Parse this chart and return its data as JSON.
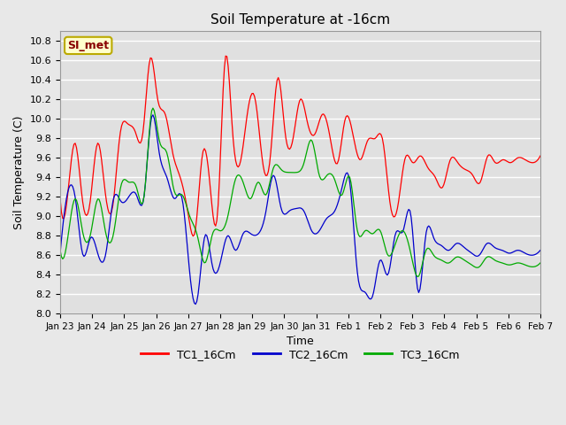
{
  "title": "Soil Temperature at -16cm",
  "xlabel": "Time",
  "ylabel": "Soil Temperature (C)",
  "ylim": [
    8.0,
    10.9
  ],
  "yticks": [
    8.0,
    8.2,
    8.4,
    8.6,
    8.8,
    9.0,
    9.2,
    9.4,
    9.6,
    9.8,
    10.0,
    10.2,
    10.4,
    10.6,
    10.8
  ],
  "fig_bg_color": "#e8e8e8",
  "plot_bg_color": "#e0e0e0",
  "grid_color": "#ffffff",
  "annotation_text": "SI_met",
  "annotation_bg": "#ffffcc",
  "annotation_border": "#bbaa00",
  "annotation_fg": "#880000",
  "colors": {
    "TC1_16Cm": "#ff0000",
    "TC2_16Cm": "#0000cc",
    "TC3_16Cm": "#00aa00"
  },
  "legend_labels": [
    "TC1_16Cm",
    "TC2_16Cm",
    "TC3_16Cm"
  ],
  "xtick_labels": [
    "Jan 23",
    "Jan 24",
    "Jan 25",
    "Jan 26",
    "Jan 27",
    "Jan 28",
    "Jan 29",
    "Jan 30",
    "Jan 31",
    "Feb 1",
    "Feb 2",
    "Feb 3",
    "Feb 4",
    "Feb 5",
    "Feb 6",
    "Feb 7"
  ],
  "n_days": 16,
  "pts_per_day": 24
}
